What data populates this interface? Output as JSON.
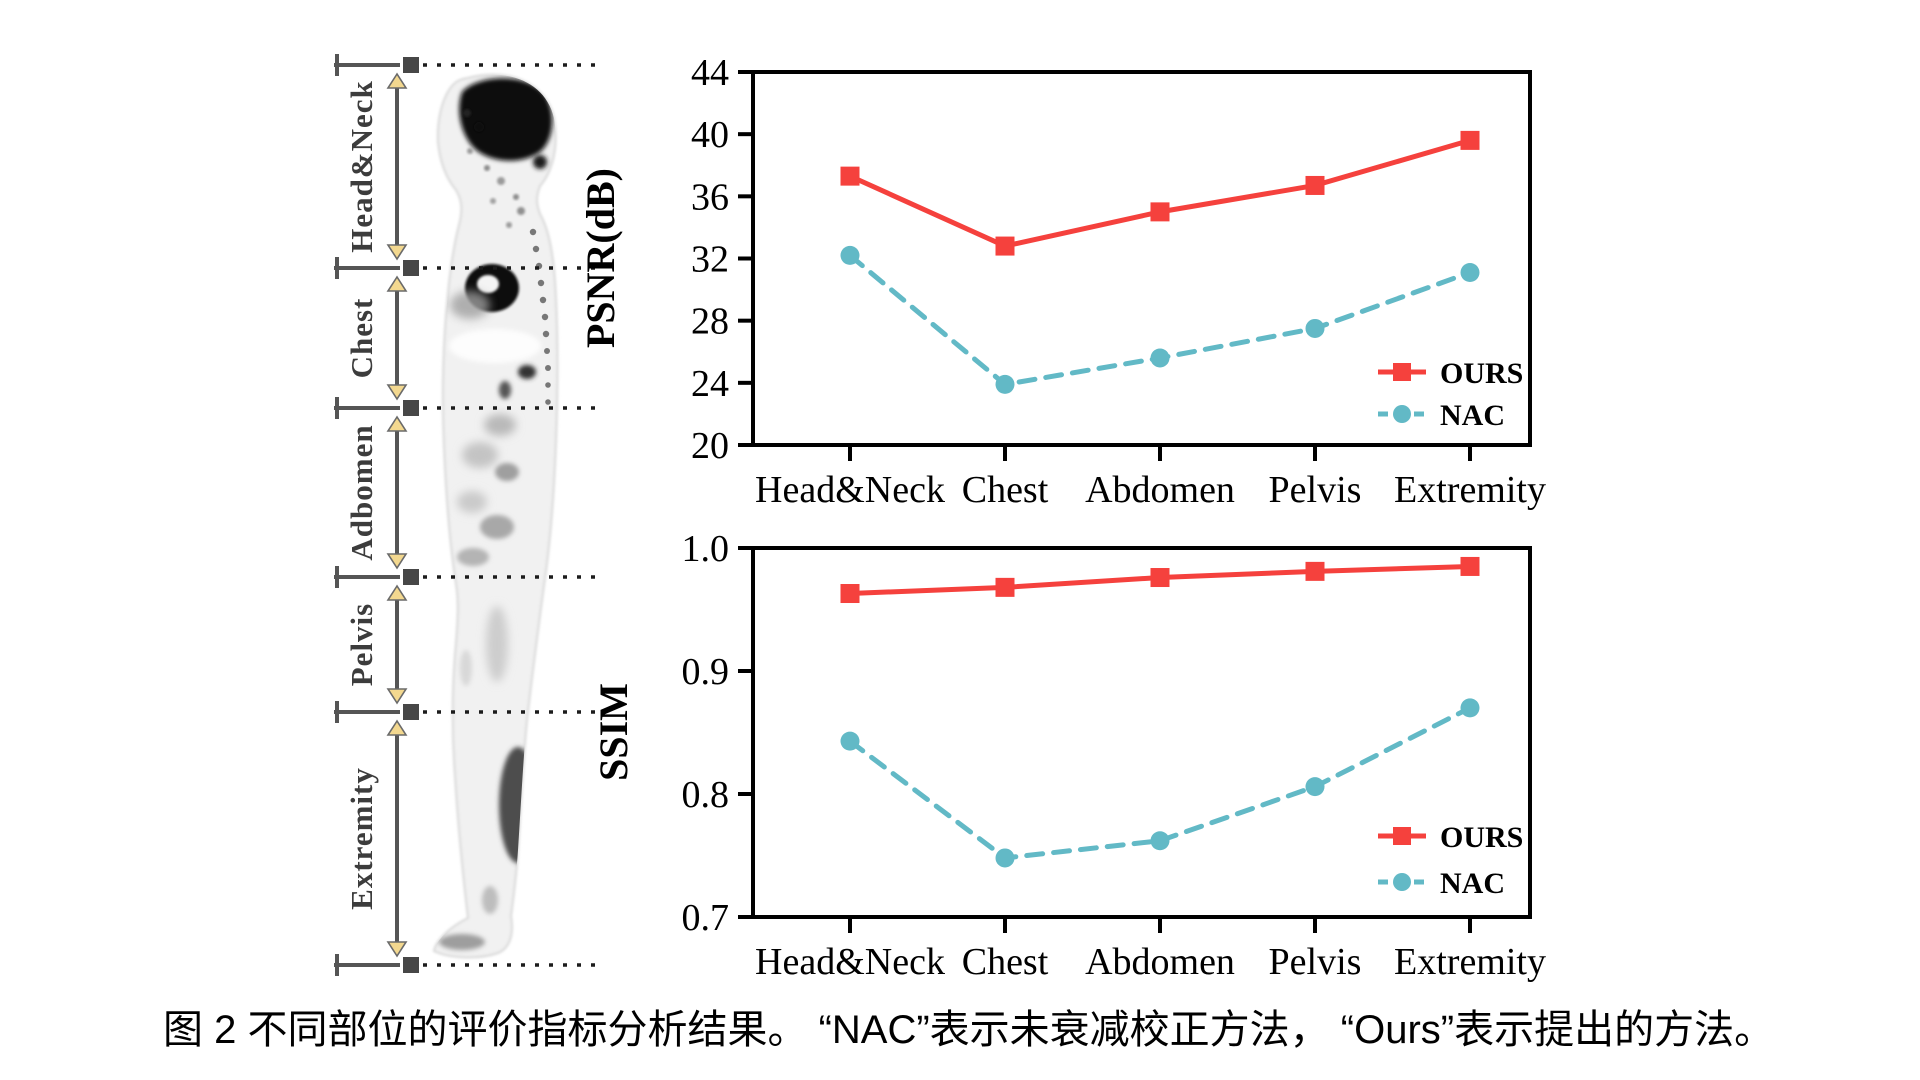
{
  "figure": {
    "caption": "图 2 不同部位的评价指标分析结果。 “NAC”表示未衰减校正方法， “Ours”表示提出的方法。",
    "body_diagram": {
      "region_labels": [
        "Head&Neck",
        "Chest",
        "Adbomen",
        "Pelvis",
        "Extremity"
      ]
    },
    "colors": {
      "ours": "#f5413d",
      "nac": "#62b9c6",
      "annotation_gray": "#555555",
      "marker_square_gray": "#474747",
      "arrowhead_fill": "#f3d88f"
    }
  },
  "chart_data": [
    {
      "type": "line",
      "title": "",
      "xlabel": "",
      "ylabel": "PSNR(dB)",
      "categories": [
        "Head&Neck",
        "Chest",
        "Abdomen",
        "Pelvis",
        "Extremity"
      ],
      "ylim": [
        20,
        44
      ],
      "yticks": [
        20,
        24,
        28,
        32,
        36,
        40,
        44
      ],
      "ytick_labels": [
        "20",
        "24",
        "28",
        "32",
        "36",
        "40",
        "44"
      ],
      "grid": false,
      "legend_position": "lower-right-inside",
      "series": [
        {
          "name": "OURS",
          "values": [
            37.3,
            32.8,
            35.0,
            36.7,
            39.6
          ],
          "color": "#f5413d",
          "marker": "square",
          "line_style": "solid"
        },
        {
          "name": "NAC",
          "values": [
            32.2,
            23.9,
            25.6,
            27.5,
            31.1
          ],
          "color": "#62b9c6",
          "marker": "circle",
          "line_style": "dashed"
        }
      ]
    },
    {
      "type": "line",
      "title": "",
      "xlabel": "",
      "ylabel": "SSIM",
      "categories": [
        "Head&Neck",
        "Chest",
        "Abdomen",
        "Pelvis",
        "Extremity"
      ],
      "ylim": [
        0.7,
        1.0
      ],
      "yticks": [
        0.7,
        0.8,
        0.9,
        1.0
      ],
      "ytick_labels": [
        "0.7",
        "0.8",
        "0.9",
        "1.0"
      ],
      "grid": false,
      "legend_position": "lower-right-inside",
      "series": [
        {
          "name": "OURS",
          "values": [
            0.963,
            0.968,
            0.976,
            0.981,
            0.985
          ],
          "color": "#f5413d",
          "marker": "square",
          "line_style": "solid"
        },
        {
          "name": "NAC",
          "values": [
            0.843,
            0.748,
            0.762,
            0.806,
            0.87
          ],
          "color": "#62b9c6",
          "marker": "circle",
          "line_style": "dashed"
        }
      ]
    }
  ]
}
